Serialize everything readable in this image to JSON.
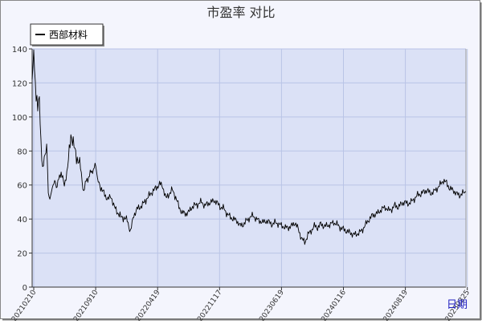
{
  "chart_data": {
    "type": "line",
    "title": "市盈率  对比",
    "legend": {
      "position": "top-left",
      "entries": [
        "西部材料"
      ]
    },
    "xlabel_corner": "日期",
    "ylim": [
      0,
      140
    ],
    "yticks": [
      0,
      20,
      40,
      60,
      80,
      100,
      120,
      140
    ],
    "grid": true,
    "colors": {
      "plot_bg": "#dbe1f6",
      "frame_bg": "#f4f5fd",
      "grid": "#b9c4e6",
      "series": "#000000",
      "axis_label": "#2020c0"
    },
    "xtick_labels": [
      "20210210",
      "20210910",
      "20220419",
      "20221117",
      "20230619",
      "20240116",
      "20240819",
      "20250325"
    ],
    "series": [
      {
        "name": "西部材料",
        "x": [
          0,
          1,
          2,
          3,
          4,
          5,
          6,
          7,
          8,
          9,
          10,
          12,
          14,
          16,
          18,
          20,
          22,
          24,
          26,
          28,
          30,
          33,
          36,
          40,
          44,
          48,
          52,
          56,
          60,
          64,
          67,
          70,
          73,
          76,
          79,
          82,
          86,
          90,
          94,
          98,
          102,
          106,
          110,
          114,
          118,
          122,
          126,
          130,
          134,
          138,
          142,
          146,
          150,
          154,
          158,
          162,
          166,
          170,
          174,
          178,
          182,
          186,
          190,
          194,
          198,
          202,
          206,
          210,
          214,
          218,
          222,
          226,
          230,
          234,
          238,
          242,
          246,
          250,
          254,
          258,
          262,
          266,
          270,
          274,
          278,
          282,
          286,
          290,
          294,
          298,
          302,
          306,
          310,
          314,
          318,
          322,
          326,
          330,
          334,
          338,
          342,
          346,
          350,
          354,
          358,
          362,
          366,
          370,
          374,
          378,
          382,
          386,
          390,
          394,
          398,
          402,
          406,
          410,
          414,
          418,
          422,
          426,
          430,
          434,
          438,
          442,
          446,
          450,
          454,
          458,
          462,
          466,
          470,
          474,
          478,
          482,
          486,
          490,
          494,
          498,
          502,
          506,
          510,
          514,
          518,
          522,
          526,
          530,
          534,
          538
        ],
        "values": [
          122,
          130,
          139,
          128,
          120,
          110,
          112,
          104,
          110,
          112,
          96,
          74,
          72,
          77,
          85,
          55,
          52,
          56,
          60,
          63,
          58,
          64,
          67,
          60,
          70,
          90,
          82,
          76,
          70,
          56,
          63,
          64,
          68,
          69,
          71,
          62,
          58,
          54,
          52,
          53,
          47,
          44,
          41,
          41,
          39,
          33,
          42,
          46,
          47,
          49,
          52,
          54,
          57,
          58,
          61,
          59,
          52,
          55,
          57,
          53,
          47,
          44,
          43,
          44,
          47,
          48,
          49,
          50,
          48,
          49,
          50,
          51,
          49,
          47,
          46,
          43,
          41,
          40,
          39,
          36,
          37,
          39,
          41,
          42,
          40,
          39,
          38,
          39,
          38,
          37,
          38,
          37,
          36,
          35,
          35,
          36,
          38,
          34,
          29,
          26,
          31,
          33,
          36,
          35,
          37,
          36,
          36,
          37,
          38,
          37,
          35,
          34,
          33,
          32,
          31,
          31,
          32,
          34,
          37,
          40,
          42,
          43,
          44,
          46,
          47,
          45,
          46,
          48,
          47,
          49,
          50,
          49,
          50,
          52,
          54,
          55,
          56,
          57,
          55,
          56,
          58,
          60,
          63,
          61,
          58,
          57,
          55,
          54,
          55,
          56
        ]
      }
    ]
  }
}
